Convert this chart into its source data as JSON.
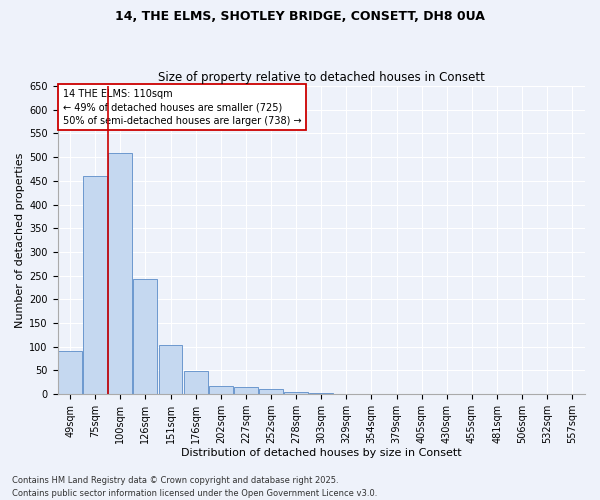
{
  "title1": "14, THE ELMS, SHOTLEY BRIDGE, CONSETT, DH8 0UA",
  "title2": "Size of property relative to detached houses in Consett",
  "xlabel": "Distribution of detached houses by size in Consett",
  "ylabel": "Number of detached properties",
  "categories": [
    "49sqm",
    "75sqm",
    "100sqm",
    "126sqm",
    "151sqm",
    "176sqm",
    "202sqm",
    "227sqm",
    "252sqm",
    "278sqm",
    "303sqm",
    "329sqm",
    "354sqm",
    "379sqm",
    "405sqm",
    "430sqm",
    "455sqm",
    "481sqm",
    "506sqm",
    "532sqm",
    "557sqm"
  ],
  "values": [
    90,
    460,
    508,
    242,
    103,
    48,
    18,
    15,
    10,
    5,
    2,
    0,
    0,
    0,
    1,
    0,
    0,
    0,
    0,
    1,
    0
  ],
  "bar_color": "#c5d8f0",
  "bar_edge_color": "#5b8cc8",
  "vline_x_idx": 1.5,
  "vline_color": "#cc0000",
  "annotation_text": "14 THE ELMS: 110sqm\n← 49% of detached houses are smaller (725)\n50% of semi-detached houses are larger (738) →",
  "annotation_box_facecolor": "#ffffff",
  "annotation_box_edgecolor": "#cc0000",
  "ylim": [
    0,
    650
  ],
  "yticks": [
    0,
    50,
    100,
    150,
    200,
    250,
    300,
    350,
    400,
    450,
    500,
    550,
    600,
    650
  ],
  "footer1": "Contains HM Land Registry data © Crown copyright and database right 2025.",
  "footer2": "Contains public sector information licensed under the Open Government Licence v3.0.",
  "bg_color": "#eef2fa",
  "grid_color": "#ffffff",
  "title1_fontsize": 9,
  "title2_fontsize": 8.5,
  "axis_label_fontsize": 8,
  "tick_fontsize": 7,
  "annotation_fontsize": 7,
  "footer_fontsize": 6
}
